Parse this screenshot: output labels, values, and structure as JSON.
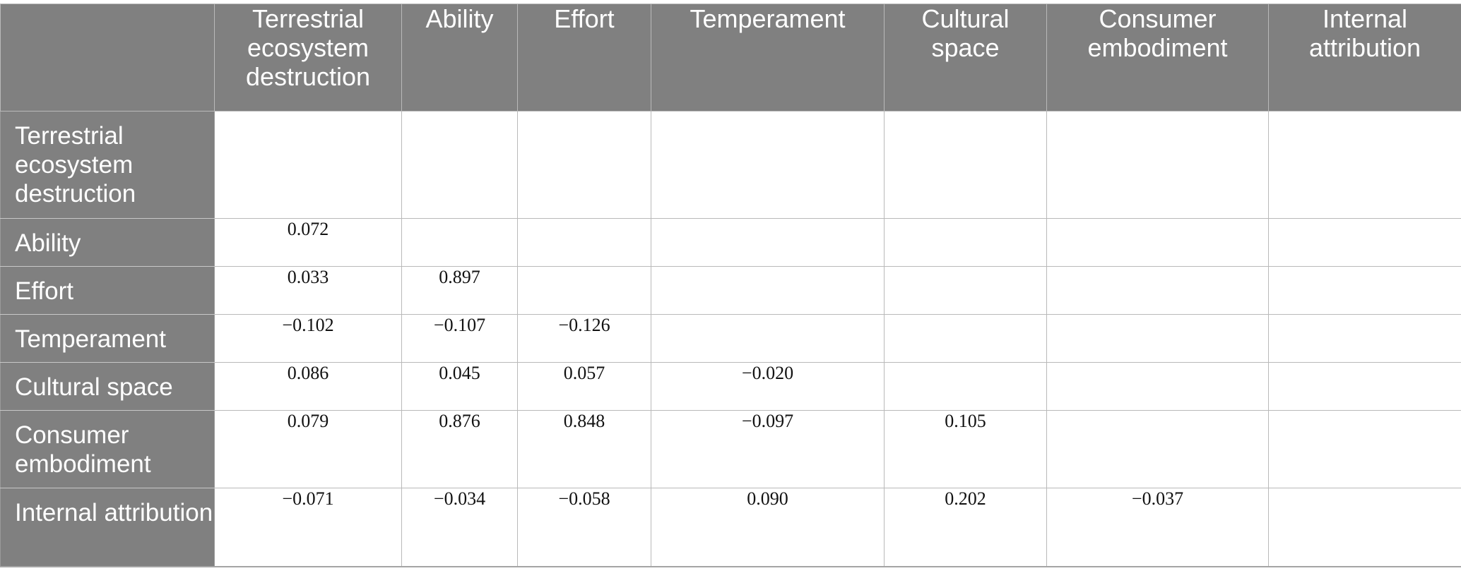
{
  "table": {
    "corner": "",
    "columns": [
      "Terrestrial ecosystem destruction",
      "Ability",
      "Effort",
      "Temperament",
      "Cultural space",
      "Consumer embodiment",
      "Internal attribution"
    ],
    "rows": [
      {
        "label": "Terrestrial ecosystem destruction",
        "cells": [
          "",
          "",
          "",
          "",
          "",
          "",
          ""
        ]
      },
      {
        "label": "Ability",
        "cells": [
          "0.072",
          "",
          "",
          "",
          "",
          "",
          ""
        ]
      },
      {
        "label": "Effort",
        "cells": [
          "0.033",
          "0.897",
          "",
          "",
          "",
          "",
          ""
        ]
      },
      {
        "label": "Temperament",
        "cells": [
          "−0.102",
          "−0.107",
          "−0.126",
          "",
          "",
          "",
          ""
        ]
      },
      {
        "label": "Cultural space",
        "cells": [
          "0.086",
          "0.045",
          "0.057",
          "−0.020",
          "",
          "",
          ""
        ]
      },
      {
        "label": "Consumer embodiment",
        "cells": [
          "0.079",
          "0.876",
          "0.848",
          "−0.097",
          "0.105",
          "",
          ""
        ]
      },
      {
        "label": "Internal attribution",
        "cells": [
          "−0.071",
          "−0.034",
          "−0.058",
          "0.090",
          "0.202",
          "−0.037",
          ""
        ]
      }
    ]
  }
}
